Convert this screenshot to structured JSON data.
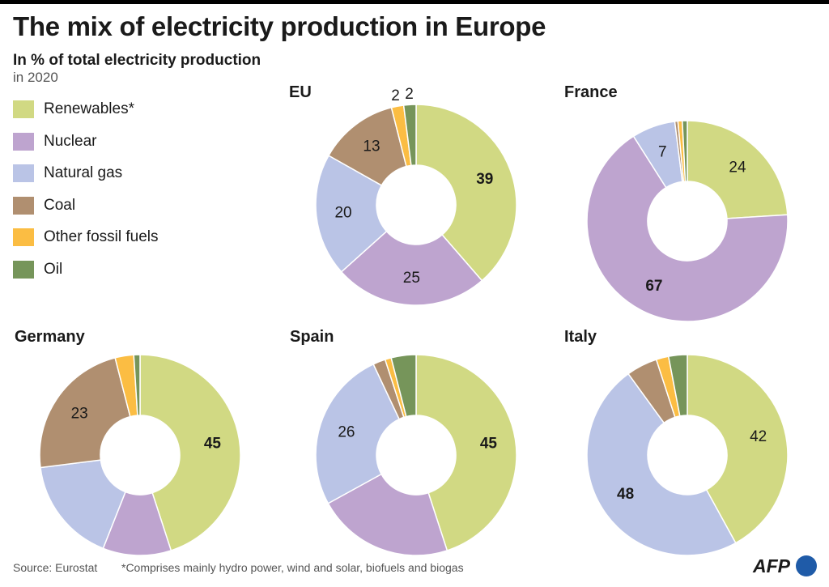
{
  "title": "The mix of electricity production in Europe",
  "subtitle": "In % of total electricity production",
  "year": "in 2020",
  "source": "Source: Eurostat",
  "note": "*Comprises mainly hydro power, wind and solar, biofuels and biogas",
  "logo": "AFP",
  "colors": {
    "renewables": "#d1d983",
    "nuclear": "#bea4cf",
    "natural_gas": "#bac4e6",
    "coal": "#b08f70",
    "other_fossil": "#fbbd43",
    "oil": "#76955a"
  },
  "legend": [
    {
      "label": "Renewables*",
      "color": "#d1d983"
    },
    {
      "label": "Nuclear",
      "color": "#bea4cf"
    },
    {
      "label": "Natural gas",
      "color": "#bac4e6"
    },
    {
      "label": "Coal",
      "color": "#b08f70"
    },
    {
      "label": "Other fossil fuels",
      "color": "#fbbd43"
    },
    {
      "label": "Oil",
      "color": "#76955a"
    }
  ],
  "chart_data": [
    {
      "type": "pie",
      "title": "EU",
      "categories": [
        "Renewables*",
        "Nuclear",
        "Natural gas",
        "Coal",
        "Other fossil fuels",
        "Oil"
      ],
      "values": [
        39,
        25,
        20,
        13,
        2,
        2
      ],
      "labels": [
        "39",
        "25",
        "20",
        "13",
        "2",
        "2"
      ]
    },
    {
      "type": "pie",
      "title": "France",
      "categories": [
        "Renewables*",
        "Nuclear",
        "Natural gas",
        "Coal",
        "Other fossil fuels",
        "Oil"
      ],
      "values": [
        24,
        67,
        7,
        0.5,
        0.7,
        0.8
      ],
      "labels": [
        "24",
        "67",
        "7",
        "",
        "",
        ""
      ]
    },
    {
      "type": "pie",
      "title": "Germany",
      "categories": [
        "Renewables*",
        "Nuclear",
        "Natural gas",
        "Coal",
        "Other fossil fuels",
        "Oil"
      ],
      "values": [
        45,
        11,
        17,
        23,
        3,
        1
      ],
      "labels": [
        "45",
        "",
        "",
        "23",
        "",
        ""
      ]
    },
    {
      "type": "pie",
      "title": "Spain",
      "categories": [
        "Renewables*",
        "Nuclear",
        "Natural gas",
        "Coal",
        "Other fossil fuels",
        "Oil"
      ],
      "values": [
        45,
        22,
        26,
        2,
        1,
        4
      ],
      "labels": [
        "45",
        "",
        "26",
        "",
        "",
        ""
      ]
    },
    {
      "type": "pie",
      "title": "Italy",
      "categories": [
        "Renewables*",
        "Nuclear",
        "Natural gas",
        "Coal",
        "Other fossil fuels",
        "Oil"
      ],
      "values": [
        42,
        0,
        48,
        5,
        2,
        3
      ],
      "labels": [
        "42",
        "",
        "48",
        "",
        "",
        ""
      ]
    }
  ]
}
